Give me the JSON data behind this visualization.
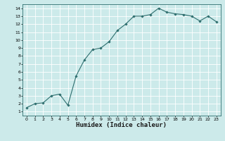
{
  "x": [
    0,
    1,
    2,
    3,
    4,
    5,
    6,
    7,
    8,
    9,
    10,
    11,
    12,
    13,
    14,
    15,
    16,
    17,
    18,
    19,
    20,
    21,
    22,
    23
  ],
  "y": [
    1.5,
    2.0,
    2.1,
    3.0,
    3.2,
    1.8,
    5.5,
    7.5,
    8.8,
    9.0,
    9.8,
    11.2,
    12.0,
    13.0,
    13.0,
    13.2,
    14.0,
    13.5,
    13.3,
    13.2,
    13.0,
    12.4,
    13.0,
    12.3
  ],
  "line_color": "#2d6e6e",
  "marker": "D",
  "marker_size": 1.8,
  "linewidth": 0.8,
  "bg_color": "#cceaea",
  "grid_color": "#ffffff",
  "xlabel": "Humidex (Indice chaleur)",
  "xlim": [
    -0.5,
    23.5
  ],
  "ylim": [
    0.5,
    14.5
  ],
  "xticks": [
    0,
    1,
    2,
    3,
    4,
    5,
    6,
    7,
    8,
    9,
    10,
    11,
    12,
    13,
    14,
    15,
    16,
    17,
    18,
    19,
    20,
    21,
    22,
    23
  ],
  "yticks": [
    1,
    2,
    3,
    4,
    5,
    6,
    7,
    8,
    9,
    10,
    11,
    12,
    13,
    14
  ],
  "tick_fontsize": 4.5,
  "xlabel_fontsize": 6.5
}
